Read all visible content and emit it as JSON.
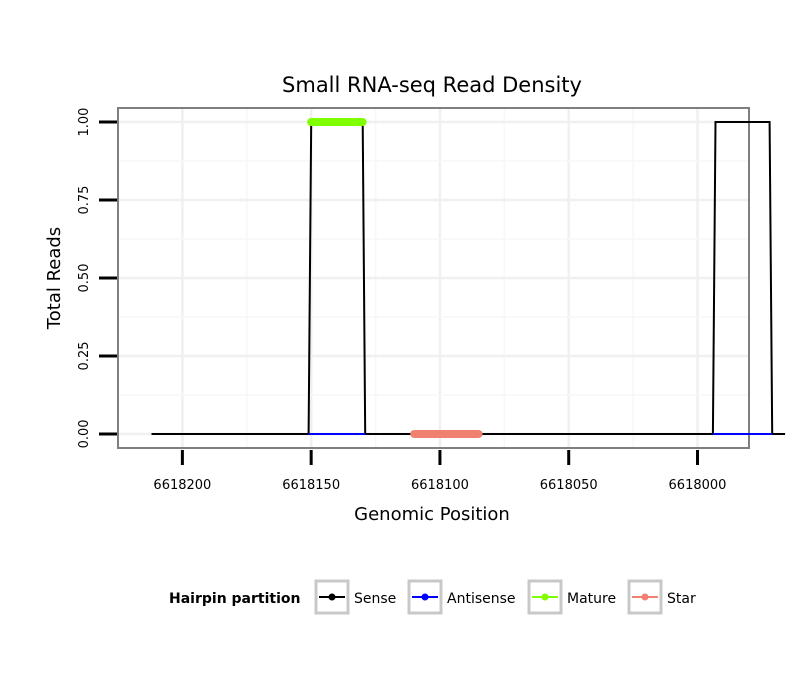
{
  "chart_data": {
    "type": "line",
    "title": "Small RNA-seq Read Density",
    "xlabel": "Genomic Position",
    "ylabel": "Total Reads",
    "x_reversed": true,
    "xlim": [
      6618225,
      6617980
    ],
    "ylim": [
      -0.045,
      1.045
    ],
    "x_ticks": [
      6618200,
      6618150,
      6618100,
      6618050,
      6618000
    ],
    "x_tick_labels": [
      "6618200",
      "6618150",
      "6618100",
      "6618050",
      "6618000"
    ],
    "y_ticks": [
      0,
      0.25,
      0.5,
      0.75,
      1.0
    ],
    "y_tick_labels": [
      "0.00",
      "0.25",
      "0.50",
      "0.75",
      "1.00"
    ],
    "grid": true,
    "legend_position": "bottom",
    "legend_title": "Hairpin partition",
    "series": [
      {
        "name": "Sense",
        "color": "#000000",
        "x": [
          6618212,
          6618151,
          6618150,
          6618130,
          6618129,
          6617994,
          6617993,
          6617972,
          6617971,
          6617966
        ],
        "y": [
          0,
          0,
          1,
          1,
          0,
          0,
          1,
          1,
          0,
          0
        ]
      },
      {
        "name": "Antisense",
        "color": "#0000ff",
        "x": [
          6618151,
          6618129,
          6617994,
          6617971
        ],
        "y": [
          0,
          0,
          0,
          0
        ]
      },
      {
        "name": "Mature",
        "color": "#7fff00",
        "x": [
          6618150,
          6618130
        ],
        "y": [
          1,
          1
        ]
      },
      {
        "name": "Star",
        "color": "#f08070",
        "x": [
          6618110,
          6618085
        ],
        "y": [
          0,
          0
        ]
      }
    ]
  }
}
